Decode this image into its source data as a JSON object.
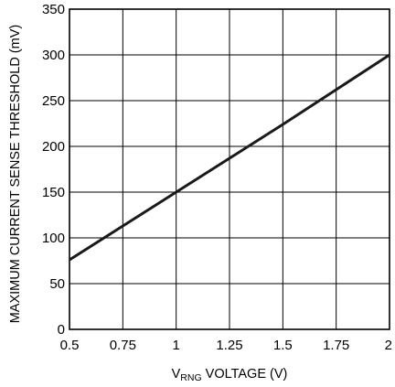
{
  "chart_data": {
    "type": "line",
    "title": "",
    "xlabel_main": "V",
    "xlabel_sub": "RNG",
    "xlabel_rest": " VOLTAGE (V)",
    "ylabel": "MAXIMUM CURRENT SENSE THRESHOLD (mV)",
    "xlim": [
      0.5,
      2
    ],
    "ylim": [
      0,
      350
    ],
    "x_ticks": [
      0.5,
      0.75,
      1,
      1.25,
      1.5,
      1.75,
      2
    ],
    "x_tick_labels": [
      "0.5",
      "0.75",
      "1",
      "1.25",
      "1.5",
      "1.75",
      "2"
    ],
    "y_ticks": [
      0,
      50,
      100,
      150,
      200,
      250,
      300,
      350
    ],
    "y_tick_labels": [
      "0",
      "50",
      "100",
      "150",
      "200",
      "250",
      "300",
      "350"
    ],
    "grid": true,
    "series": [
      {
        "x": [
          0.5,
          0.75,
          1,
          1.25,
          1.5,
          1.75,
          2
        ],
        "y": [
          76,
          113,
          150,
          187,
          224,
          262,
          300
        ]
      }
    ],
    "colors": {
      "line": "#1a1a1a",
      "grid": "#000000",
      "background": "#ffffff"
    }
  }
}
